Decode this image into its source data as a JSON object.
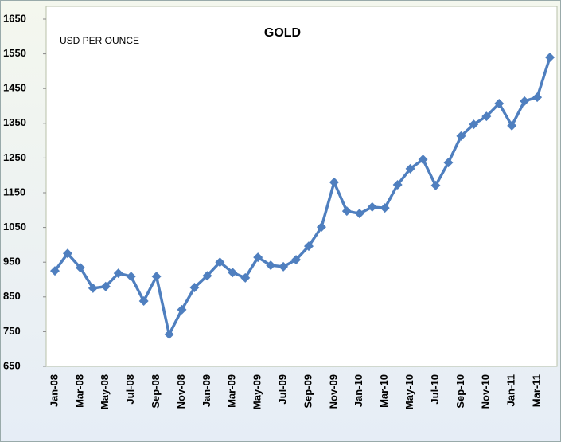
{
  "chart_data": {
    "type": "line",
    "title": "GOLD",
    "annotation": "USD PER OUNCE",
    "categories": [
      "Jan-08",
      null,
      "Mar-08",
      null,
      "May-08",
      null,
      "Jul-08",
      null,
      "Sep-08",
      null,
      "Nov-08",
      null,
      "Jan-09",
      null,
      "Mar-09",
      null,
      "May-09",
      null,
      "Jul-09",
      null,
      "Sep-09",
      null,
      "Nov-09",
      null,
      "Jan-10",
      null,
      "Mar-10",
      null,
      "May-10",
      null,
      "Jul-10",
      null,
      "Sep-10",
      null,
      "Nov-10",
      null,
      "Jan-11",
      null,
      "Mar-11",
      null
    ],
    "series": [
      {
        "name": "Gold",
        "color": "#4f7fbf",
        "values": [
          925,
          975,
          934,
          875,
          880,
          918,
          909,
          838,
          909,
          742,
          813,
          877,
          911,
          950,
          920,
          905,
          964,
          941,
          937,
          957,
          996,
          1051,
          1180,
          1097,
          1090,
          1109,
          1106,
          1173,
          1219,
          1246,
          1171,
          1237,
          1313,
          1347,
          1370,
          1407,
          1343,
          1414,
          1425,
          1540
        ]
      }
    ],
    "ylim": [
      650,
      1650
    ],
    "yticks": [
      650,
      750,
      850,
      950,
      1050,
      1150,
      1250,
      1350,
      1450,
      1550,
      1650
    ]
  }
}
